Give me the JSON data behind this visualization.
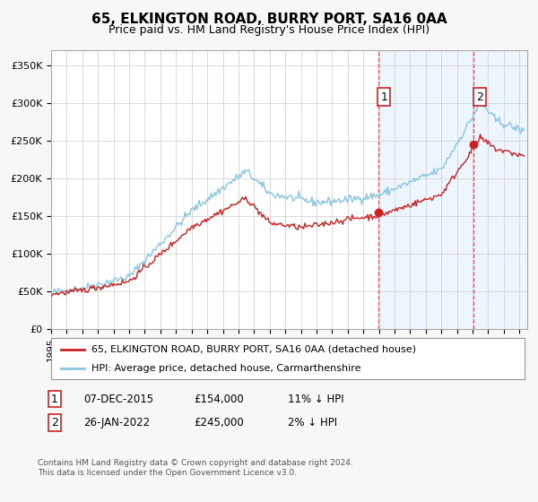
{
  "title": "65, ELKINGTON ROAD, BURRY PORT, SA16 0AA",
  "subtitle": "Price paid vs. HM Land Registry's House Price Index (HPI)",
  "ylabel_ticks": [
    "£0",
    "£50K",
    "£100K",
    "£150K",
    "£200K",
    "£250K",
    "£300K",
    "£350K"
  ],
  "ytick_values": [
    0,
    50000,
    100000,
    150000,
    200000,
    250000,
    300000,
    350000
  ],
  "ylim": [
    0,
    370000
  ],
  "xlim_start": 1995.0,
  "xlim_end": 2025.5,
  "sale1_date": 2015.95,
  "sale1_price": 154000,
  "sale1_label": "1",
  "sale2_date": 2022.07,
  "sale2_price": 245000,
  "sale2_label": "2",
  "hpi_color": "#89c4e1",
  "sale_color": "#cc2222",
  "vline_color": "#cc2222",
  "vline_alpha": 0.7,
  "shade_color": "#ddeeff",
  "shade_alpha": 0.5,
  "legend_label1": "65, ELKINGTON ROAD, BURRY PORT, SA16 0AA (detached house)",
  "legend_label2": "HPI: Average price, detached house, Carmarthenshire",
  "table_row1": [
    "1",
    "07-DEC-2015",
    "£154,000",
    "11% ↓ HPI"
  ],
  "table_row2": [
    "2",
    "26-JAN-2022",
    "£245,000",
    "2% ↓ HPI"
  ],
  "footnote": "Contains HM Land Registry data © Crown copyright and database right 2024.\nThis data is licensed under the Open Government Licence v3.0.",
  "bg_color": "#f7f7f7",
  "plot_bg_color": "#ffffff",
  "grid_color": "#cccccc",
  "title_fontsize": 11,
  "subtitle_fontsize": 9
}
